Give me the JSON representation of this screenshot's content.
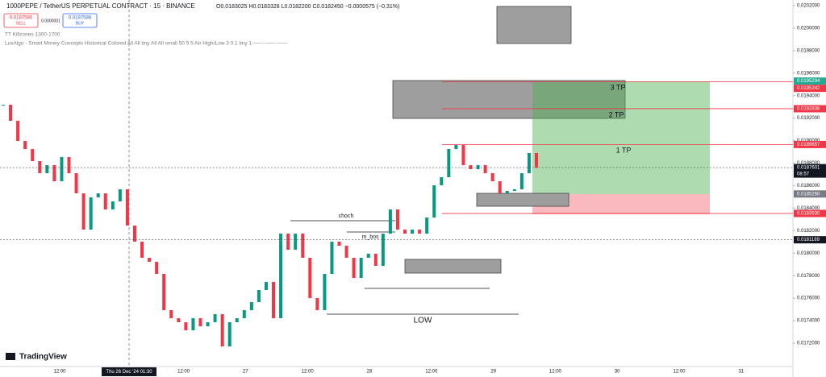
{
  "chart_data": {
    "type": "candlestick",
    "symbol": "1000PEPE / TetherUS PERPETUAL CONTRACT · 15 · BINANCE",
    "ohlc": "O0.0183025 H0.0183328 L0.0182200 C0.0182450 −0.0000575 (−0.31%)",
    "sell": {
      "price": "0.0187585",
      "label": "SELL"
    },
    "spread": "0.0000001",
    "buy": {
      "price": "0.0187586",
      "label": "BUY"
    },
    "indicators": [
      "TT Killzones 1300-1700",
      "LuxAlgo - Smart Money Concepts Historical Colored All All tiny All All small 50 5 5 Atr High/Low 3 0.1 tiny 1 —— —— ——"
    ],
    "annotations": {
      "choch": "choch",
      "m_bos": "m_bos",
      "low": "LOW",
      "tp3": "3 TP",
      "tp2": "2 TP",
      "tp1": "1 TP"
    },
    "brand": "TradingView",
    "x_axis_labels": [
      "12:00",
      "12:00",
      "27",
      "12:00",
      "28",
      "12:00",
      "29",
      "12:00",
      "30",
      "12:00",
      "31"
    ],
    "crosshair_label": "Thu 26 Dec '24  01:30",
    "ylim": [
      0.0169923,
      0.0202501
    ],
    "yticks": [
      {
        "value": 0.0202,
        "label": "0.0202000"
      },
      {
        "value": 0.02,
        "label": "0.0200000"
      },
      {
        "value": 0.0198,
        "label": "0.0198000"
      },
      {
        "value": 0.0196,
        "label": "0.0196000"
      },
      {
        "value": 0.0194,
        "label": "0.0194000"
      },
      {
        "value": 0.0192,
        "label": "0.0192000"
      },
      {
        "value": 0.019,
        "label": "0.0190000"
      },
      {
        "value": 0.0188,
        "label": "0.0188000"
      },
      {
        "value": 0.0186,
        "label": "0.0186000"
      },
      {
        "value": 0.0184,
        "label": "0.0184000"
      },
      {
        "value": 0.0182,
        "label": "0.0182000"
      },
      {
        "value": 0.018,
        "label": "0.0180000"
      },
      {
        "value": 0.0178,
        "label": "0.0178000"
      },
      {
        "value": 0.0176,
        "label": "0.0176000"
      },
      {
        "value": 0.0174,
        "label": "0.0174000"
      },
      {
        "value": 0.0172,
        "label": "0.0172000"
      }
    ],
    "price_tags": [
      {
        "value": 0.0195294,
        "color": "#22ab94"
      },
      {
        "value": 0.0195242,
        "color": "#f23645"
      },
      {
        "value": 0.0192838,
        "color": "#f23645"
      },
      {
        "value": 0.0189657,
        "color": "#f23645"
      },
      {
        "value": 0.0187601,
        "color": "#131722",
        "countdown": "08:57"
      },
      {
        "value": 0.018526,
        "label": "0.0185260",
        "color": "#787b86"
      },
      {
        "value": 0.018353,
        "label": "0.0183530",
        "color": "#f23645"
      },
      {
        "value": 0.0181189,
        "color": "#131722"
      }
    ],
    "up_color": "#089981",
    "down_color": "#f23645",
    "closes": [
      0.0193192,
      0.019176,
      0.018997,
      0.0189254,
      0.018818,
      0.0187106,
      0.0187822,
      0.018639,
      0.0188538,
      0.0187106,
      0.0185315,
      0.0182093,
      0.0184957,
      0.0185315,
      0.0183883,
      0.01846,
      0.0185673,
      0.0182451,
      0.0181019,
      0.0179587,
      0.0179229,
      0.0178155,
      0.0174932,
      0.0174216,
      0.0173858,
      0.0173143,
      0.0174216,
      0.01735,
      0.0173858,
      0.0174574,
      0.017171,
      0.0173858,
      0.0174216,
      0.0174932,
      0.0175648,
      0.0176723,
      0.0177439,
      0.0174216,
      0.0181735,
      0.0180304,
      0.0181735,
      0.0179587,
      0.0176006,
      0.0174932,
      0.0178155,
      0.0181019,
      0.0180662,
      0.0179587,
      0.0177797,
      0.0179587,
      0.0179946,
      0.0178872,
      0.0181735,
      0.0183883,
      0.0182093,
      0.0181735,
      0.0182093,
      0.0181735,
      0.0183168,
      0.0186031,
      0.0186748,
      0.0189254,
      0.0189612,
      0.0187822,
      0.0187465,
      0.0187822,
      0.0187106,
      0.018639,
      0.0185315,
      0.018553,
      0.0185673,
      0.0187106,
      0.0188897,
      0.0187601
    ]
  }
}
